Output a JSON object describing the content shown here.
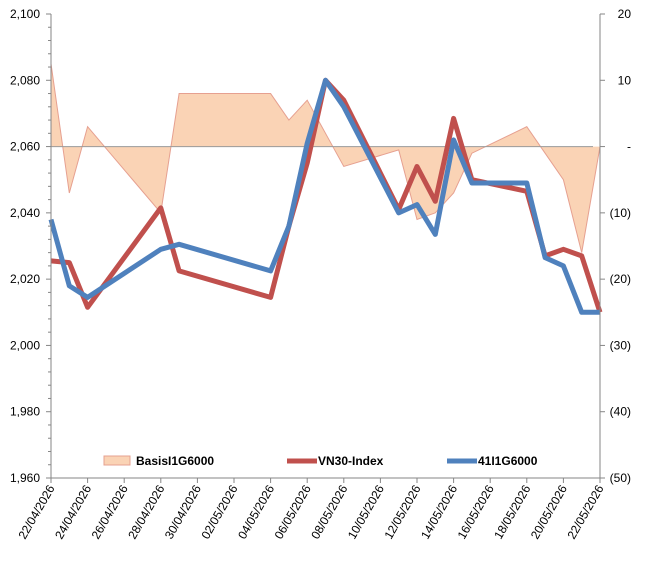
{
  "chart_data": {
    "type": "line",
    "dates": [
      "22/04/2026",
      "23/04/2026",
      "24/04/2026",
      "28/04/2026",
      "29/04/2026",
      "04/05/2026",
      "05/05/2026",
      "06/05/2026",
      "07/05/2026",
      "08/05/2026",
      "11/05/2026",
      "12/05/2026",
      "13/05/2026",
      "14/05/2026",
      "15/05/2026",
      "18/05/2026",
      "19/05/2026",
      "20/05/2026",
      "21/05/2026",
      "22/05/2026"
    ],
    "x_tick_labels": [
      "22/04/2026",
      "24/04/2026",
      "26/04/2026",
      "28/04/2026",
      "30/04/2026",
      "02/05/2026",
      "04/05/2026",
      "06/05/2026",
      "08/05/2026",
      "10/05/2026",
      "12/05/2026",
      "14/05/2026",
      "16/05/2026",
      "18/05/2026",
      "20/05/2026",
      "22/05/2026"
    ],
    "y_left": {
      "min": 1960,
      "max": 2100,
      "step": 20,
      "tick_labels": [
        "1,960",
        "1,980",
        "2,000",
        "2,020",
        "2,040",
        "2,060",
        "2,080",
        "2,100"
      ]
    },
    "y_right": {
      "min": -50,
      "max": 20,
      "step": 10,
      "tick_labels": [
        "(50)",
        "(40)",
        "(30)",
        "(20)",
        "(10)",
        "-",
        "10",
        "20"
      ]
    },
    "series": [
      {
        "name": "BasisI1G6000",
        "kind": "area",
        "axis": "right",
        "color_fill": "#FAD3B5",
        "color_line": "#E6A090",
        "values": [
          12.5,
          -7,
          3,
          -10,
          8,
          8,
          4,
          7,
          2,
          -3,
          -0.5,
          -11,
          -10,
          -7,
          -1,
          3,
          -1,
          -5,
          -16,
          0
        ]
      },
      {
        "name": "VN30-Index",
        "kind": "line",
        "axis": "left",
        "color": "#C0504D",
        "values": [
          2025.5,
          2025,
          2011.5,
          2041.5,
          2022.5,
          2014.5,
          2036,
          2055,
          2080,
          2074,
          2041,
          2054,
          2043.5,
          2068.5,
          2050,
          2046.5,
          2027,
          2029,
          2027,
          2010
        ]
      },
      {
        "name": "41I1G6000",
        "kind": "line",
        "axis": "left",
        "color": "#4F81BD",
        "values": [
          2038,
          2018,
          2014.5,
          2029,
          2030.5,
          2022.5,
          2036,
          2061,
          2080,
          2072,
          2040,
          2042.5,
          2033.5,
          2062,
          2049,
          2049,
          2026.5,
          2024,
          2010,
          2010
        ]
      }
    ],
    "legend_position": "bottom-inside",
    "grid": false
  }
}
